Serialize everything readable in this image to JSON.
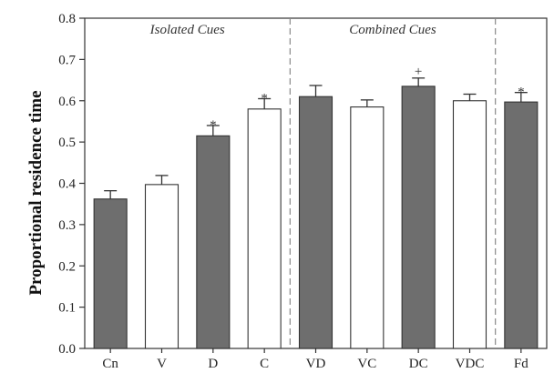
{
  "chart_data": {
    "type": "bar",
    "title": "",
    "xlabel": "",
    "ylabel": "Proportional residence time",
    "ylim": [
      0.0,
      0.8
    ],
    "yticks": [
      "0.0",
      "0.1",
      "0.2",
      "0.3",
      "0.4",
      "0.5",
      "0.6",
      "0.7",
      "0.8"
    ],
    "ytick_values": [
      0,
      0.1,
      0.2,
      0.3,
      0.4,
      0.5,
      0.6,
      0.7,
      0.8
    ],
    "categories": [
      "Cn",
      "V",
      "D",
      "C",
      "VD",
      "VC",
      "DC",
      "VDC",
      "Fd"
    ],
    "values": [
      0.362,
      0.397,
      0.515,
      0.58,
      0.61,
      0.585,
      0.635,
      0.6,
      0.597
    ],
    "errors": [
      0.02,
      0.022,
      0.025,
      0.025,
      0.027,
      0.017,
      0.02,
      0.016,
      0.023
    ],
    "fills": [
      "gray",
      "white",
      "gray",
      "white",
      "gray",
      "white",
      "gray",
      "white",
      "gray"
    ],
    "markers": [
      "",
      "",
      "*",
      "*",
      "",
      "",
      "+",
      "",
      "*"
    ],
    "groups": [
      {
        "label": "Isolated Cues",
        "start": 0,
        "end": 3
      },
      {
        "label": "Combined Cues",
        "start": 4,
        "end": 7
      }
    ],
    "separators_after": [
      3,
      7
    ],
    "grid": false,
    "legend": "none",
    "colors": {
      "gray": "#6e6e6e",
      "white": "#ffffff",
      "edge": "#333333"
    }
  }
}
